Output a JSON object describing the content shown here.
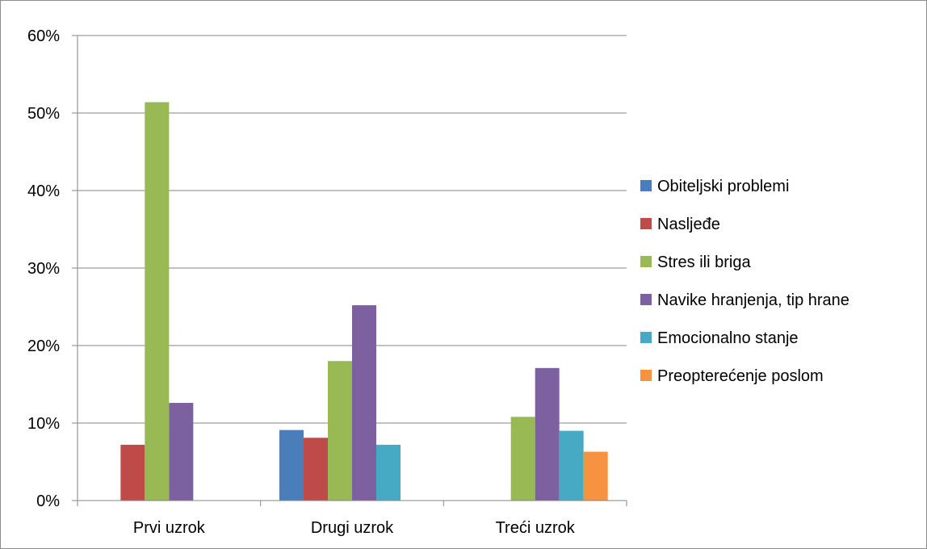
{
  "chart_data": {
    "type": "bar",
    "title": "",
    "xlabel": "",
    "ylabel": "",
    "ylim": [
      0,
      60
    ],
    "y_ticks": [
      "0%",
      "10%",
      "20%",
      "30%",
      "40%",
      "50%",
      "60%"
    ],
    "y_tick_values": [
      0,
      10,
      20,
      30,
      40,
      50,
      60
    ],
    "grid": true,
    "legend_position": "right",
    "categories": [
      "Prvi uzrok",
      "Drugi uzrok",
      "Treći uzrok"
    ],
    "series": [
      {
        "name": "Obiteljski problemi",
        "color": "#4a7ebb",
        "values": [
          0,
          9.1,
          0
        ]
      },
      {
        "name": "Nasljeđe",
        "color": "#be4b48",
        "values": [
          7.2,
          8.1,
          0
        ]
      },
      {
        "name": "Stres ili briga",
        "color": "#98b954",
        "values": [
          51.4,
          18.0,
          10.8
        ]
      },
      {
        "name": "Navike hranjenja, tip hrane",
        "color": "#7d60a0",
        "values": [
          12.6,
          25.2,
          17.1
        ]
      },
      {
        "name": "Emocionalno stanje",
        "color": "#46aac5",
        "values": [
          0,
          7.2,
          9.0
        ]
      },
      {
        "name": "Preopterećenje poslom",
        "color": "#f69240",
        "values": [
          0,
          0,
          6.3
        ]
      }
    ]
  }
}
